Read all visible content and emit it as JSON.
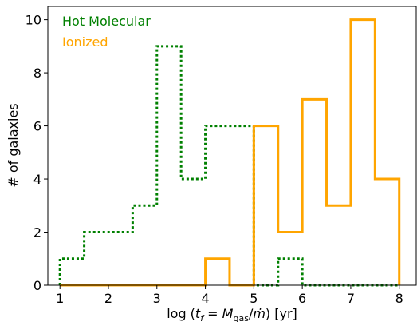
{
  "chart_data": {
    "type": "histogram",
    "xlabel": "log (t_f = M_gas/ṁ) [yr]",
    "ylabel": "# of galaxies",
    "xlim": [
      0.75,
      8.35
    ],
    "ylim": [
      0,
      10.5
    ],
    "xticks": [
      1,
      2,
      3,
      4,
      5,
      6,
      7,
      8
    ],
    "yticks": [
      0,
      2,
      4,
      6,
      8,
      10
    ],
    "grid": false,
    "legend_placement": "top-left",
    "series": [
      {
        "name": "Hot Molecular",
        "color": "#008000",
        "linestyle": "dotted",
        "bin_edges": [
          1.0,
          1.5,
          2.0,
          2.5,
          3.0,
          3.5,
          4.0,
          4.5,
          5.0,
          5.5,
          6.0,
          6.5,
          7.0,
          7.5,
          8.0
        ],
        "counts": [
          1,
          2,
          2,
          3,
          9,
          4,
          6,
          6,
          0,
          1,
          0,
          0,
          0,
          0
        ]
      },
      {
        "name": "Ionized",
        "color": "#FFA500",
        "linestyle": "solid",
        "bin_edges": [
          1.0,
          1.5,
          2.0,
          2.5,
          3.0,
          3.5,
          4.0,
          4.5,
          5.0,
          5.5,
          6.0,
          6.5,
          7.0,
          7.5,
          8.0
        ],
        "counts": [
          0,
          0,
          0,
          0,
          0,
          0,
          1,
          0,
          6,
          2,
          7,
          3,
          10,
          4
        ]
      }
    ]
  }
}
